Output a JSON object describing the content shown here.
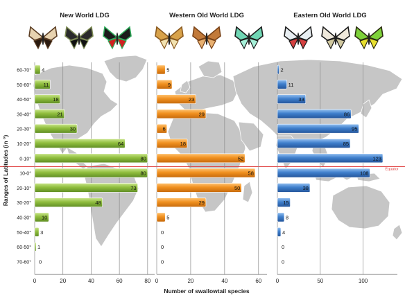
{
  "chart_data": [
    {
      "type": "bar",
      "orientation": "horizontal",
      "title": "New World LDG",
      "categories": [
        "60-70°",
        "50-60°",
        "40-50°",
        "30-40°",
        "20-30°",
        "10-20°",
        "0-10°",
        "10-0°",
        "20-10°",
        "30-20°",
        "40-30°",
        "50-40°",
        "60-50°",
        "70-60°"
      ],
      "values": [
        4,
        11,
        18,
        21,
        30,
        64,
        80,
        80,
        73,
        48,
        10,
        3,
        1,
        0
      ],
      "xlim": [
        0,
        85
      ],
      "xticks": [
        "0",
        "20",
        "40",
        "60",
        "80"
      ],
      "color": "#8ab73a"
    },
    {
      "type": "bar",
      "orientation": "horizontal",
      "title": "Western Old World LDG",
      "categories": [
        "60-70°",
        "50-60°",
        "40-50°",
        "30-40°",
        "20-30°",
        "10-20°",
        "0-10°",
        "10-0°",
        "20-10°",
        "30-20°",
        "40-30°",
        "50-40°",
        "60-50°",
        "70-60°"
      ],
      "values": [
        5,
        9,
        23,
        29,
        6,
        18,
        52,
        58,
        50,
        29,
        5,
        0,
        0,
        0
      ],
      "xlim": [
        0,
        65
      ],
      "xticks": [
        "0",
        "20",
        "40",
        "60"
      ],
      "color": "#f08c1e"
    },
    {
      "type": "bar",
      "orientation": "horizontal",
      "title": "Eastern Old World LDG",
      "categories": [
        "60-70°",
        "50-60°",
        "40-50°",
        "30-40°",
        "20-30°",
        "10-20°",
        "0-10°",
        "10-0°",
        "20-10°",
        "30-20°",
        "40-30°",
        "50-40°",
        "60-50°",
        "70-60°"
      ],
      "values": [
        2,
        11,
        33,
        86,
        95,
        85,
        123,
        108,
        38,
        15,
        8,
        4,
        0,
        0
      ],
      "xlim": [
        0,
        140
      ],
      "xticks": [
        "0",
        "50",
        "100"
      ],
      "color": "#3d7cc9"
    }
  ],
  "ylabel": "Ranges of Latitudes (in °)",
  "xlabel": "Number of swallowtail species",
  "equator_label": "Equator",
  "colors": {
    "equator_line": "#e04040",
    "map_land": "#c6c6c6",
    "grid": "#8a8a8a"
  },
  "icons": [
    "butterfly-icon"
  ]
}
